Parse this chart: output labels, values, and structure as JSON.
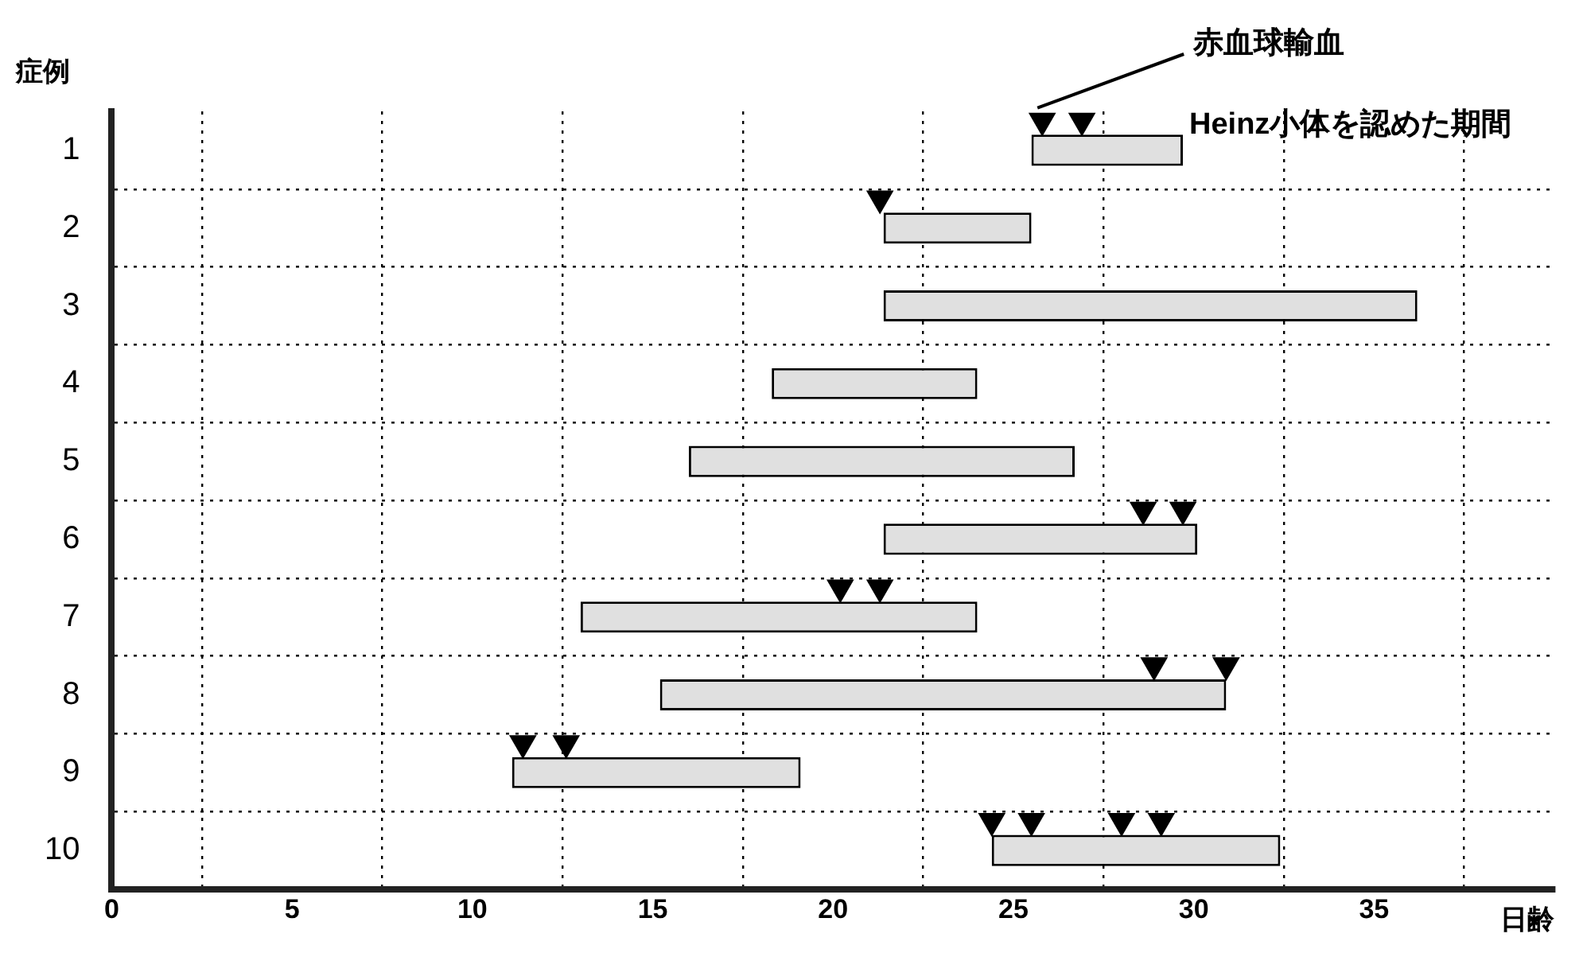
{
  "chart_data": {
    "type": "bar",
    "orientation": "horizontal",
    "ylabel": "症例",
    "xlabel": "日齢",
    "categories": [
      "1",
      "2",
      "3",
      "4",
      "5",
      "6",
      "7",
      "8",
      "9",
      "10"
    ],
    "xlim": [
      0,
      40
    ],
    "xticks": [
      0,
      5,
      10,
      15,
      20,
      25,
      30,
      35
    ],
    "grid": true,
    "legend": false,
    "series": [
      {
        "type": "bar",
        "name": "Heinz小体を認めた期間",
        "color": "#e0e0e0",
        "base": [
          25.5,
          21.4,
          21.4,
          18.3,
          16.0,
          21.4,
          13.0,
          15.2,
          11.1,
          24.4
        ],
        "values": [
          4.2,
          4.1,
          14.8,
          5.7,
          10.7,
          8.7,
          11.0,
          15.7,
          8.0,
          8.0
        ]
      },
      {
        "type": "scatter",
        "name": "赤血球輸血",
        "color": "#000000",
        "marker": "triangle",
        "x": [
          "1",
          "1",
          "2",
          "6",
          "6",
          "7",
          "7",
          "8",
          "8",
          "9",
          "9",
          "10",
          "10",
          "10",
          "10"
        ],
        "values": [
          25.8,
          26.9,
          21.3,
          28.6,
          29.7,
          20.2,
          21.3,
          28.9,
          30.9,
          11.4,
          12.6,
          24.4,
          25.5,
          28.0,
          29.1
        ]
      }
    ]
  }
}
